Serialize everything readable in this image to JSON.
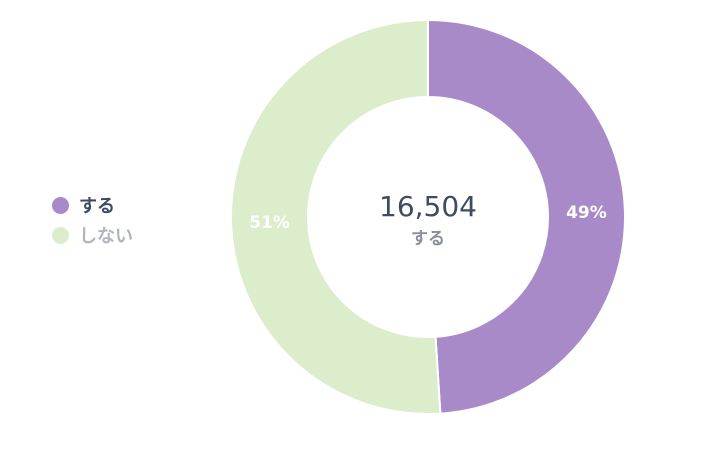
{
  "chart_data": {
    "type": "pie",
    "variant": "donut",
    "categories": [
      "する",
      "しない"
    ],
    "values": [
      49,
      51
    ],
    "value_labels": [
      "49%",
      "51%"
    ],
    "colors": [
      "#a98ac8",
      "#dcedcc"
    ],
    "center": {
      "value": "16,504",
      "label": "する"
    },
    "legend": {
      "placement": "left",
      "items": [
        {
          "label": "する",
          "color": "#a98ac8",
          "text_color": "#3f4a63"
        },
        {
          "label": "しない",
          "color": "#dcedcc",
          "text_color": "#b0b4bd"
        }
      ]
    }
  }
}
